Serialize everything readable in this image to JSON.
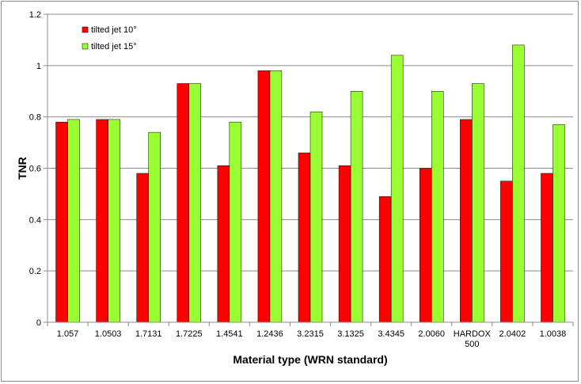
{
  "chart_data": {
    "type": "bar",
    "title": "",
    "xlabel": "Material type (WRN standard)",
    "ylabel": "TNR",
    "ylim": [
      0,
      1.2
    ],
    "yticks": [
      0,
      0.2,
      0.4,
      0.6,
      0.8,
      1,
      1.2
    ],
    "grid": true,
    "legend_position": "top-left",
    "categories": [
      "1.057",
      "1.0503",
      "1.7131",
      "1.7225",
      "1.4541",
      "1.2436",
      "3.2315",
      "3.1325",
      "3.4345",
      "2.0060",
      "HARDOX 500",
      "2.0402",
      "1.0038"
    ],
    "series": [
      {
        "name": "tilted jet 10°",
        "color": "#ff0000",
        "values": [
          0.78,
          0.79,
          0.58,
          0.93,
          0.61,
          0.98,
          0.66,
          0.61,
          0.49,
          0.6,
          0.79,
          0.55,
          0.58
        ]
      },
      {
        "name": "tilted jet 15°",
        "color": "#99ff33",
        "values": [
          0.79,
          0.79,
          0.74,
          0.93,
          0.78,
          0.98,
          0.82,
          0.9,
          1.04,
          0.9,
          0.93,
          1.08,
          0.77
        ]
      }
    ]
  }
}
